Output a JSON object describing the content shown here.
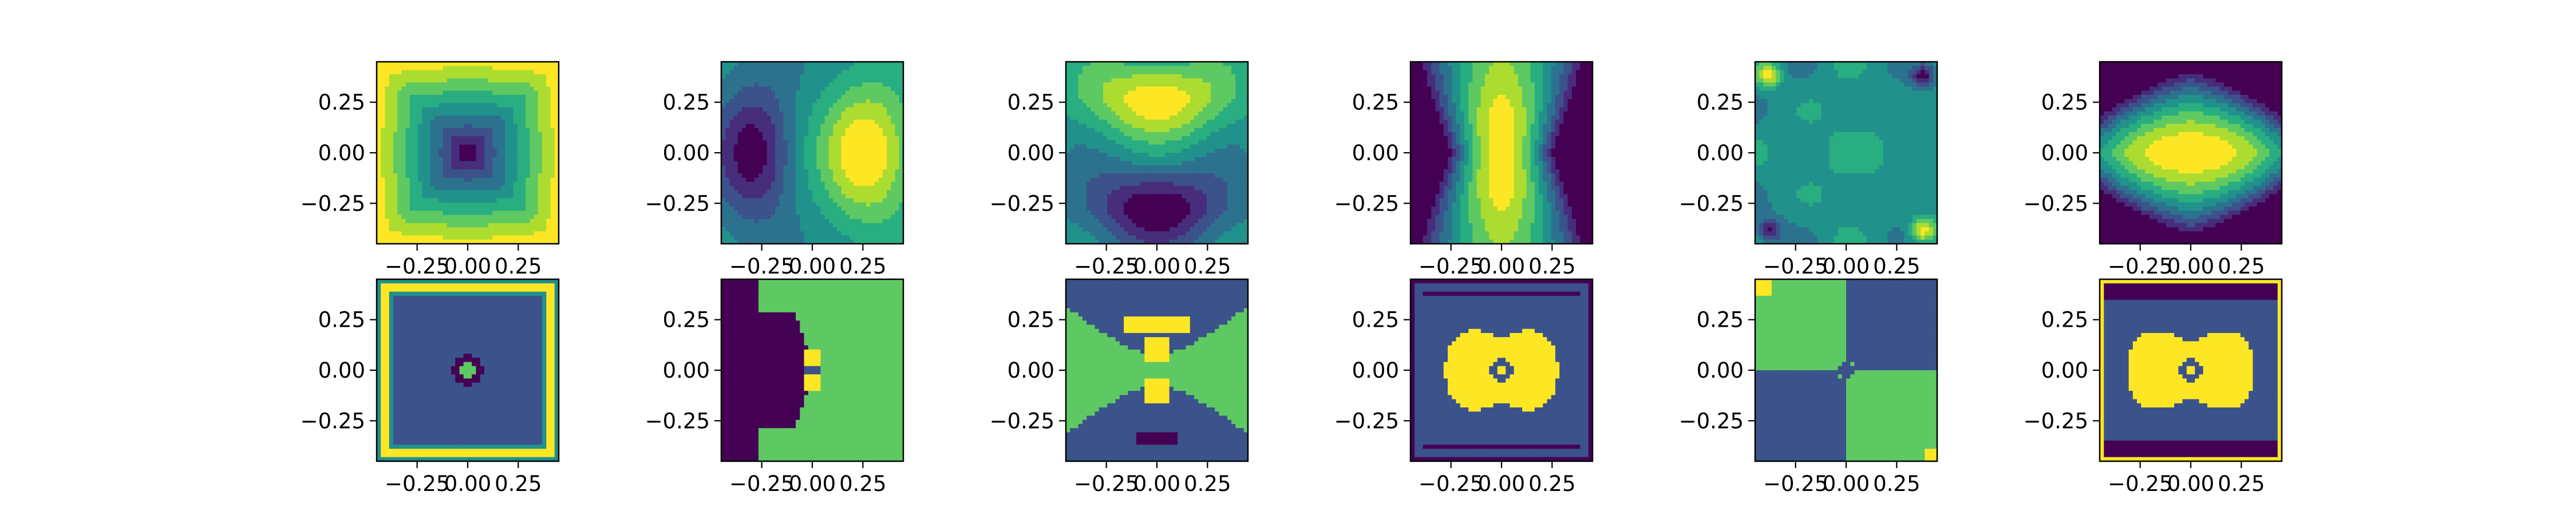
{
  "chart_data": [
    {
      "type": "heatmap",
      "title": "",
      "xlabel": "",
      "ylabel": "",
      "xlim": [
        -0.45,
        0.45
      ],
      "ylim": [
        -0.45,
        0.45
      ],
      "xticks": [
        -0.25,
        0.0,
        0.25
      ],
      "xtick_labels": [
        "−0.25",
        "0.00",
        "0.25"
      ],
      "yticks": [
        -0.25,
        0.0,
        0.25
      ],
      "ytick_labels": [
        "−0.25",
        "0.00",
        "0.25"
      ],
      "colormap": "viridis",
      "grid": false,
      "pattern": "concentric square contours, low at center rising to edges",
      "levels": 9
    },
    {
      "type": "heatmap",
      "title": "",
      "xlabel": "",
      "ylabel": "",
      "xlim": [
        -0.45,
        0.45
      ],
      "ylim": [
        -0.45,
        0.45
      ],
      "xticks": [
        -0.25,
        0.0,
        0.25
      ],
      "xtick_labels": [
        "−0.25",
        "0.00",
        "0.25"
      ],
      "yticks": [
        -0.25,
        0.0,
        0.25
      ],
      "ytick_labels": [
        "−0.25",
        "0.00",
        "0.25"
      ],
      "colormap": "viridis",
      "grid": false,
      "pattern": "low lobe on left, high lobe on right (x-dipole)",
      "levels": 9
    },
    {
      "type": "heatmap",
      "title": "",
      "xlabel": "",
      "ylabel": "",
      "xlim": [
        -0.45,
        0.45
      ],
      "ylim": [
        -0.45,
        0.45
      ],
      "xticks": [
        -0.25,
        0.0,
        0.25
      ],
      "xtick_labels": [
        "−0.25",
        "0.00",
        "0.25"
      ],
      "yticks": [
        -0.25,
        0.0,
        0.25
      ],
      "ytick_labels": [
        "−0.25",
        "0.00",
        "0.25"
      ],
      "colormap": "viridis",
      "grid": false,
      "pattern": "high lobe on top, low lobe on bottom (y-dipole)",
      "levels": 9
    },
    {
      "type": "heatmap",
      "title": "",
      "xlabel": "",
      "ylabel": "",
      "xlim": [
        -0.45,
        0.45
      ],
      "ylim": [
        -0.45,
        0.45
      ],
      "xticks": [
        -0.25,
        0.0,
        0.25
      ],
      "xtick_labels": [
        "−0.25",
        "0.00",
        "0.25"
      ],
      "yticks": [
        -0.25,
        0.0,
        0.25
      ],
      "ytick_labels": [
        "−0.25",
        "0.00",
        "0.25"
      ],
      "colormap": "viridis",
      "grid": false,
      "pattern": "high hourglass peak at center, low at left/right edges",
      "levels": 9
    },
    {
      "type": "heatmap",
      "title": "",
      "xlabel": "",
      "ylabel": "",
      "xlim": [
        -0.45,
        0.45
      ],
      "ylim": [
        -0.45,
        0.45
      ],
      "xticks": [
        -0.25,
        0.0,
        0.25
      ],
      "xtick_labels": [
        "−0.25",
        "0.00",
        "0.25"
      ],
      "yticks": [
        -0.25,
        0.0,
        0.25
      ],
      "ytick_labels": [
        "−0.25",
        "0.00",
        "0.25"
      ],
      "colormap": "viridis",
      "grid": false,
      "pattern": "mostly flat mid-level field with small blobs, high spots top-left/bottom-right, low spots top-right/bottom-left",
      "levels": 9
    },
    {
      "type": "heatmap",
      "title": "",
      "xlabel": "",
      "ylabel": "",
      "xlim": [
        -0.45,
        0.45
      ],
      "ylim": [
        -0.45,
        0.45
      ],
      "xticks": [
        -0.25,
        0.0,
        0.25
      ],
      "xtick_labels": [
        "−0.25",
        "0.00",
        "0.25"
      ],
      "yticks": [
        -0.25,
        0.0,
        0.25
      ],
      "ytick_labels": [
        "−0.25",
        "0.00",
        "0.25"
      ],
      "colormap": "viridis",
      "grid": false,
      "pattern": "broad bowtie-shaped peak at center, low toward all edges",
      "levels": 9
    },
    {
      "type": "heatmap",
      "title": "",
      "xlabel": "",
      "ylabel": "",
      "xlim": [
        -0.45,
        0.45
      ],
      "ylim": [
        -0.45,
        0.45
      ],
      "xticks": [
        -0.25,
        0.0,
        0.25
      ],
      "xtick_labels": [
        "−0.25",
        "0.00",
        "0.25"
      ],
      "yticks": [
        -0.25,
        0.0,
        0.25
      ],
      "ytick_labels": [
        "−0.25",
        "0.00",
        "0.25"
      ],
      "colormap": "viridis",
      "grid": false,
      "pattern": "uniform square core with small ring at center, bright yellow border frame",
      "levels": 5
    },
    {
      "type": "heatmap",
      "title": "",
      "xlabel": "",
      "ylabel": "",
      "xlim": [
        -0.45,
        0.45
      ],
      "ylim": [
        -0.45,
        0.45
      ],
      "xticks": [
        -0.25,
        0.0,
        0.25
      ],
      "xtick_labels": [
        "−0.25",
        "0.00",
        "0.25"
      ],
      "yticks": [
        -0.25,
        0.0,
        0.25
      ],
      "ytick_labels": [
        "−0.25",
        "0.00",
        "0.25"
      ],
      "colormap": "viridis",
      "grid": false,
      "pattern": "dark left half, green right half with green bands top/bottom, small yellow spot at center",
      "levels": 5
    },
    {
      "type": "heatmap",
      "title": "",
      "xlabel": "",
      "ylabel": "",
      "xlim": [
        -0.45,
        0.45
      ],
      "ylim": [
        -0.45,
        0.45
      ],
      "xticks": [
        -0.25,
        0.0,
        0.25
      ],
      "xtick_labels": [
        "−0.25",
        "0.00",
        "0.25"
      ],
      "yticks": [
        -0.25,
        0.0,
        0.25
      ],
      "ytick_labels": [
        "−0.25",
        "0.00",
        "0.25"
      ],
      "colormap": "viridis",
      "grid": false,
      "pattern": "green X-shaped band, blue regions top/bottom, yellow streaks near center",
      "levels": 5
    },
    {
      "type": "heatmap",
      "title": "",
      "xlabel": "",
      "ylabel": "",
      "xlim": [
        -0.45,
        0.45
      ],
      "ylim": [
        -0.45,
        0.45
      ],
      "xticks": [
        -0.25,
        0.0,
        0.25
      ],
      "xtick_labels": [
        "−0.25",
        "0.00",
        "0.25"
      ],
      "yticks": [
        -0.25,
        0.0,
        0.25
      ],
      "ytick_labels": [
        "−0.25",
        "0.00",
        "0.25"
      ],
      "colormap": "viridis",
      "grid": false,
      "pattern": "large yellow butterfly shape at center on teal background, dark frame",
      "levels": 5
    },
    {
      "type": "heatmap",
      "title": "",
      "xlabel": "",
      "ylabel": "",
      "xlim": [
        -0.45,
        0.45
      ],
      "ylim": [
        -0.45,
        0.45
      ],
      "xticks": [
        -0.25,
        0.0,
        0.25
      ],
      "xtick_labels": [
        "−0.25",
        "0.00",
        "0.25"
      ],
      "yticks": [
        -0.25,
        0.0,
        0.25
      ],
      "ytick_labels": [
        "−0.25",
        "0.00",
        "0.25"
      ],
      "colormap": "viridis",
      "grid": false,
      "pattern": "four-quadrant checkerboard: green top-left and bottom-right, blue top-right and bottom-left",
      "levels": 5
    },
    {
      "type": "heatmap",
      "title": "",
      "xlabel": "",
      "ylabel": "",
      "xlim": [
        -0.45,
        0.45
      ],
      "ylim": [
        -0.45,
        0.45
      ],
      "xticks": [
        -0.25,
        0.0,
        0.25
      ],
      "xtick_labels": [
        "−0.25",
        "0.00",
        "0.25"
      ],
      "yticks": [
        -0.25,
        0.0,
        0.25
      ],
      "ytick_labels": [
        "−0.25",
        "0.00",
        "0.25"
      ],
      "colormap": "viridis",
      "grid": false,
      "pattern": "yellow butterfly shape at center on teal, dark bands top/bottom, yellow outer frame",
      "levels": 5
    }
  ],
  "colors": {
    "viridis": [
      "#440154",
      "#472d7b",
      "#3b528b",
      "#2c728e",
      "#21918c",
      "#28ae80",
      "#5ec962",
      "#addc30",
      "#fde725"
    ]
  }
}
